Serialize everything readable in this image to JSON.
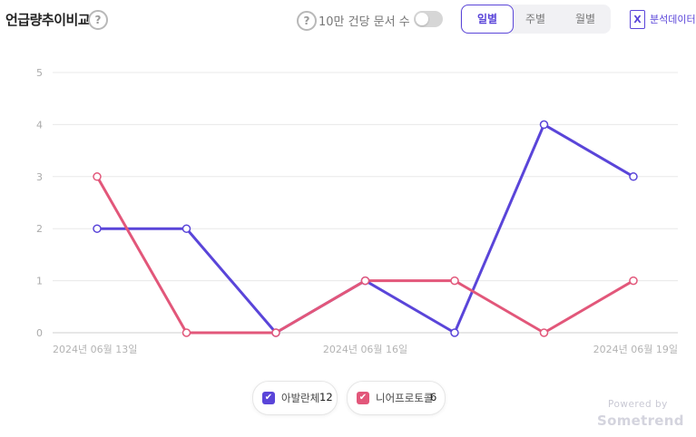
{
  "header": {
    "title": "언급량추이비교",
    "help_icon": "?",
    "toggle_label": "10만 건당 문서 수",
    "toggle_on": false,
    "tabs": [
      {
        "label": "일별",
        "active": true
      },
      {
        "label": "주별",
        "active": false
      },
      {
        "label": "월별",
        "active": false
      }
    ],
    "export_icon": "X",
    "export_label": "분석데이터"
  },
  "chart_data": {
    "type": "line",
    "x": [
      "2024년 06월 13일",
      "2024년 06월 14일",
      "2024년 06월 15일",
      "2024년 06월 16일",
      "2024년 06월 17일",
      "2024년 06월 18일",
      "2024년 06월 19일"
    ],
    "x_tick_labels": [
      "2024년 06월 13일",
      "",
      "",
      "2024년 06월 16일",
      "",
      "",
      "2024년 06월 19일"
    ],
    "ylim": [
      0,
      5
    ],
    "yticks": [
      "0",
      "1",
      "2",
      "3",
      "4",
      "5"
    ],
    "grid": true,
    "series": [
      {
        "name": "아발란체",
        "color": "#5a45d9",
        "values": [
          2,
          2,
          0,
          1,
          0,
          4,
          3
        ]
      },
      {
        "name": "니어프로토콜",
        "color": "#e2577a",
        "values": [
          3,
          0,
          0,
          1,
          1,
          0,
          1
        ]
      }
    ]
  },
  "legend": [
    {
      "label": "아발란체",
      "count": "12",
      "color": "#5a45d9"
    },
    {
      "label": "니어프로토콜",
      "count": "6",
      "color": "#e2577a"
    }
  ],
  "footer": {
    "powered": "Powered by",
    "brand": "Sometrend"
  }
}
